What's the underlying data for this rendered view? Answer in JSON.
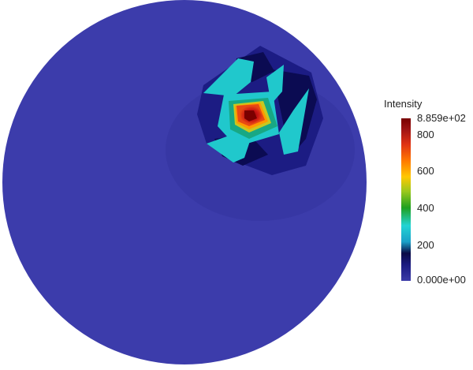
{
  "colorbar": {
    "title": "Intensity",
    "max_label": "8.859e+02",
    "min_label": "0.000e+00",
    "range": [
      0,
      885.9
    ],
    "ticks": [
      {
        "value": 800,
        "label": "800"
      },
      {
        "value": 600,
        "label": "600"
      },
      {
        "value": 400,
        "label": "400"
      },
      {
        "value": 200,
        "label": "200"
      }
    ],
    "colormap": [
      "#3b3ba8",
      "#1e1e8c",
      "#0a0a50",
      "#1aa0c8",
      "#22d4d4",
      "#1ea01e",
      "#c8c81e",
      "#ffa000",
      "#e83c14",
      "#a01414",
      "#780000"
    ]
  },
  "field": {
    "background_color": "#3c3cab",
    "background_value": 0,
    "peak_value": 885.9
  }
}
